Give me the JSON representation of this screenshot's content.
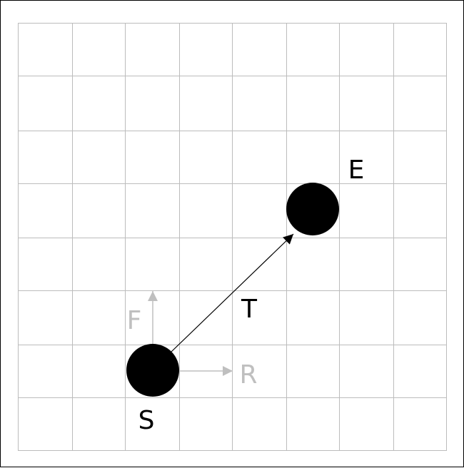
{
  "diagram": {
    "grid": {
      "columns": 8,
      "rows": 8,
      "line_color": "#bcbcbc"
    },
    "colors": {
      "ink": "#000000",
      "muted": "#bfbfbf"
    },
    "points": {
      "start": {
        "label": "S"
      },
      "end": {
        "label": "E"
      }
    },
    "vectors": {
      "target": {
        "label": "T"
      },
      "forward": {
        "label": "F"
      },
      "right": {
        "label": "R"
      }
    }
  }
}
